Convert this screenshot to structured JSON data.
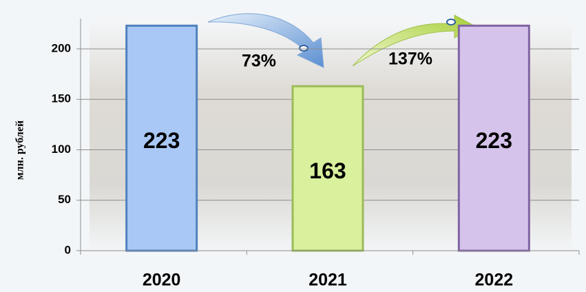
{
  "chart_data": {
    "type": "bar",
    "y_axis_label": "млн. рублей",
    "categories": [
      "2020",
      "2021",
      "2022"
    ],
    "values": [
      223,
      163,
      223
    ],
    "colors": [
      "#a9c8f5",
      "#d9f09c",
      "#d6c3ec"
    ],
    "edge_colors": [
      "#4f81bd",
      "#9bbb59",
      "#8064a2"
    ],
    "ylim": [
      0,
      230
    ],
    "yticks": [
      0,
      50,
      100,
      150,
      200
    ],
    "grid": true,
    "annotations": [
      "73%",
      "137%"
    ]
  }
}
